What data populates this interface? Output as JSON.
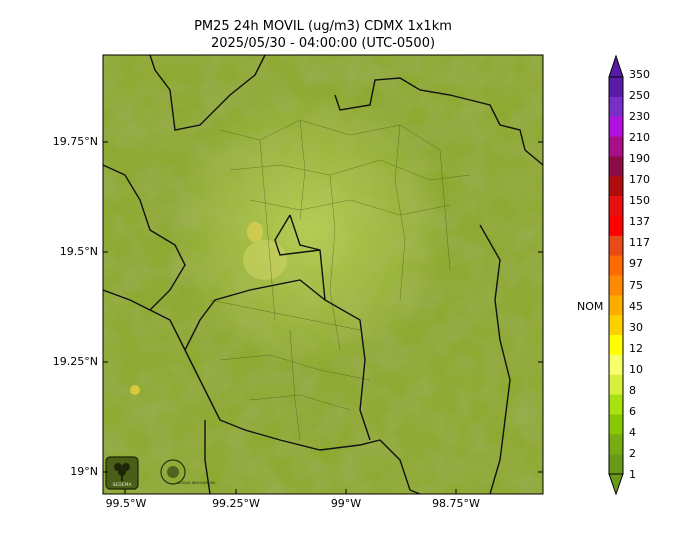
{
  "title": {
    "line1": "PM25 24h MOVIL (ug/m3) CDMX 1x1km",
    "line2": "2025/05/30 - 04:00:00 (UTC-0500)"
  },
  "map": {
    "lat_ticks": [
      "19.75°N",
      "19.5°N",
      "19.25°N",
      "19°N"
    ],
    "lon_ticks": [
      "99.5°W",
      "99.25°W",
      "99°W",
      "98.75°W"
    ],
    "terrain_colors": [
      "#6e8a1e",
      "#8aa62c",
      "#a2bd3f",
      "#5f7a1c"
    ],
    "logos": [
      {
        "icon": "sedema-logo-icon",
        "text": "SEDEMA"
      },
      {
        "icon": "gobierno-cdmx-logo-icon",
        "text": "CIUDAD INNOVADORA"
      }
    ]
  },
  "colorbar": {
    "labels": [
      "350",
      "250",
      "230",
      "210",
      "190",
      "170",
      "150",
      "137",
      "117",
      "97",
      "75",
      "45",
      "30",
      "12",
      "10",
      "8",
      "6",
      "4",
      "2",
      "1"
    ],
    "colors": [
      "#5a1ba8",
      "#7a2ec8",
      "#b010e0",
      "#a80f88",
      "#8c0a46",
      "#b00c0c",
      "#e81010",
      "#ff0000",
      "#e84a18",
      "#ff6a00",
      "#ff8a00",
      "#ffad00",
      "#ffd000",
      "#ffff00",
      "#f4ff6a",
      "#d8f03a",
      "#a8e010",
      "#88c800",
      "#76ac12",
      "#6a9a1a"
    ],
    "nom_label": "NOM"
  }
}
